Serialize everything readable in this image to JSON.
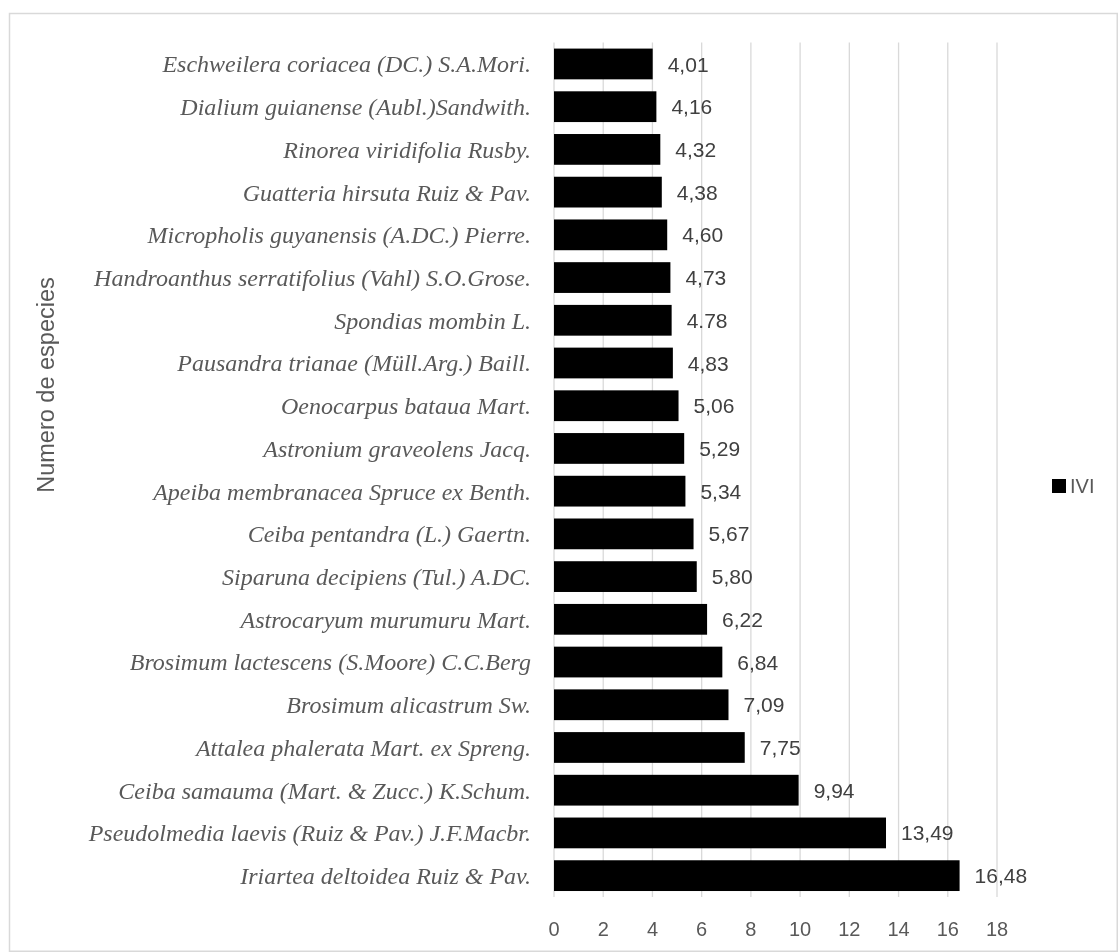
{
  "chart_data": {
    "type": "bar",
    "orientation": "horizontal",
    "categories": [
      "Eschweilera coriacea (DC.) S.A.Mori.",
      "Dialium guianense (Aubl.)Sandwith.",
      "Rinorea viridifolia Rusby.",
      "Guatteria hirsuta Ruiz & Pav.",
      "Micropholis guyanensis (A.DC.) Pierre.",
      "Handroanthus serratifolius (Vahl) S.O.Grose.",
      "Spondias mombin L.",
      "Pausandra trianae (Müll.Arg.) Baill.",
      "Oenocarpus bataua Mart.",
      "Astronium graveolens Jacq.",
      "Apeiba membranacea Spruce ex Benth.",
      "Ceiba pentandra (L.) Gaertn.",
      "Siparuna decipiens (Tul.) A.DC.",
      "Astrocaryum murumuru Mart.",
      "Brosimum lactescens (S.Moore) C.C.Berg",
      "Brosimum alicastrum Sw.",
      "Attalea phalerata Mart. ex Spreng.",
      "Ceiba samauma (Mart. & Zucc.) K.Schum.",
      "Pseudolmedia laevis (Ruiz & Pav.) J.F.Macbr.",
      "Iriartea deltoidea Ruiz & Pav."
    ],
    "series": [
      {
        "name": "IVI",
        "color": "#000000",
        "values": [
          4.01,
          4.16,
          4.32,
          4.38,
          4.6,
          4.73,
          4.78,
          4.83,
          5.06,
          5.29,
          5.34,
          5.67,
          5.8,
          6.22,
          6.84,
          7.09,
          7.75,
          9.94,
          13.49,
          16.48
        ],
        "value_labels": [
          "4,01",
          "4,16",
          "4,32",
          "4,38",
          "4,60",
          "4,73",
          "4.78",
          "4,83",
          "5,06",
          "5,29",
          "5,34",
          "5,67",
          "5,80",
          "6,22",
          "6,84",
          "7,09",
          "7,75",
          "9,94",
          "13,49",
          "16,48"
        ]
      }
    ],
    "ylabel": "Numero de especies",
    "xlim": [
      0,
      18
    ],
    "xticks": [
      0,
      2,
      4,
      6,
      8,
      10,
      12,
      14,
      16,
      18
    ],
    "grid": "x",
    "legend": "right"
  }
}
